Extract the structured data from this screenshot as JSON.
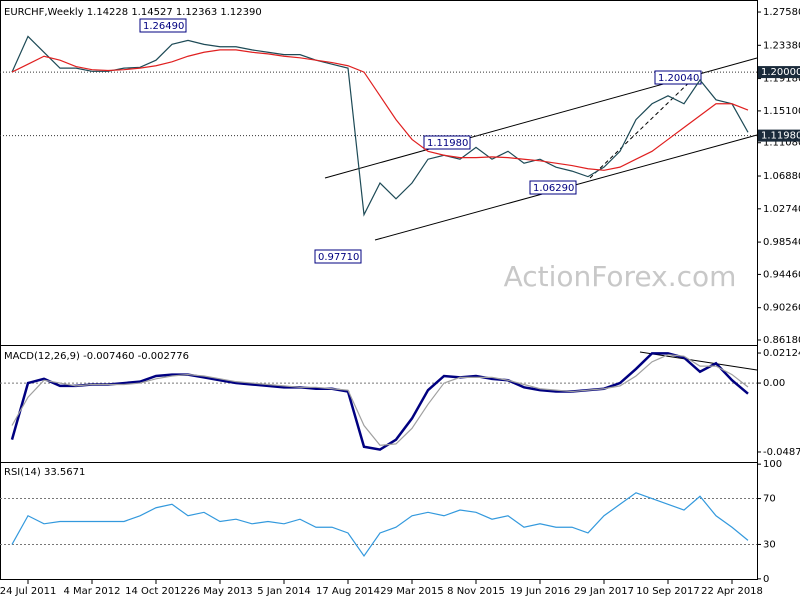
{
  "chart_data": [
    {
      "type": "line",
      "title": "EURCHF,Weekly  1.14228 1.14527 1.12363 1.12390",
      "watermark": "ActionForex.com",
      "series": [
        {
          "color": "#1d4a56",
          "values": [
            1.2,
            1.245,
            1.225,
            1.205,
            1.205,
            1.201,
            1.201,
            1.205,
            1.206,
            1.215,
            1.235,
            1.24,
            1.235,
            1.232,
            1.232,
            1.228,
            1.225,
            1.222,
            1.222,
            1.215,
            1.21,
            1.205,
            1.02,
            1.06,
            1.04,
            1.06,
            1.09,
            1.095,
            1.09,
            1.105,
            1.09,
            1.1,
            1.085,
            1.09,
            1.08,
            1.075,
            1.068,
            1.08,
            1.1,
            1.14,
            1.16,
            1.17,
            1.16,
            1.19,
            1.165,
            1.16,
            1.124
          ]
        },
        {
          "color": "#e02020",
          "values": [
            1.2,
            1.21,
            1.22,
            1.215,
            1.207,
            1.203,
            1.202,
            1.203,
            1.205,
            1.208,
            1.213,
            1.22,
            1.225,
            1.228,
            1.228,
            1.225,
            1.223,
            1.22,
            1.218,
            1.215,
            1.212,
            1.208,
            1.2,
            1.17,
            1.14,
            1.115,
            1.1,
            1.095,
            1.092,
            1.092,
            1.093,
            1.092,
            1.09,
            1.088,
            1.085,
            1.082,
            1.078,
            1.076,
            1.08,
            1.09,
            1.1,
            1.115,
            1.13,
            1.145,
            1.16,
            1.16,
            1.152
          ]
        }
      ],
      "ylim": [
        0.8555,
        1.2872
      ],
      "yticks": [
        {
          "value": 1.2758,
          "label": "1.27580"
        },
        {
          "value": 1.2338,
          "label": "1.23380"
        },
        {
          "value": 1.1918,
          "label": "1.19180"
        },
        {
          "value": 1.151,
          "label": "1.15100"
        },
        {
          "value": 1.1108,
          "label": "1.11080"
        },
        {
          "value": 1.0688,
          "label": "1.06880"
        },
        {
          "value": 1.0274,
          "label": "1.02740"
        },
        {
          "value": 0.9854,
          "label": "0.98540"
        },
        {
          "value": 0.9446,
          "label": "0.94460"
        },
        {
          "value": 0.9026,
          "label": "0.90260"
        },
        {
          "value": 0.8618,
          "label": "0.86180"
        }
      ],
      "levels": [
        {
          "value": 1.2,
          "label": "1.20000"
        },
        {
          "value": 1.1198,
          "label": "1.11980"
        }
      ],
      "annotations": [
        "1.26490",
        "1.20040",
        "1.11980",
        "1.06290",
        "0.97710"
      ]
    },
    {
      "type": "line",
      "title": "MACD(12,26,9) -0.007460 -0.002776",
      "series": [
        {
          "color": "#000080",
          "values": [
            -0.04,
            0.0,
            0.003,
            -0.002,
            -0.002,
            -0.001,
            -0.001,
            0.0,
            0.001,
            0.005,
            0.006,
            0.006,
            0.004,
            0.002,
            0.0,
            -0.001,
            -0.002,
            -0.003,
            -0.003,
            -0.004,
            -0.004,
            -0.006,
            -0.045,
            -0.047,
            -0.04,
            -0.025,
            -0.005,
            0.005,
            0.004,
            0.005,
            0.003,
            0.002,
            -0.003,
            -0.005,
            -0.006,
            -0.006,
            -0.005,
            -0.004,
            0.0,
            0.01,
            0.021,
            0.021,
            0.018,
            0.008,
            0.014,
            0.002,
            -0.0075
          ]
        },
        {
          "color": "#a0a0a0",
          "values": [
            -0.03,
            -0.01,
            0.002,
            0.0,
            -0.002,
            -0.001,
            -0.001,
            -0.001,
            0.0,
            0.003,
            0.005,
            0.006,
            0.005,
            0.003,
            0.001,
            0.0,
            -0.001,
            -0.002,
            -0.003,
            -0.003,
            -0.004,
            -0.005,
            -0.03,
            -0.044,
            -0.043,
            -0.032,
            -0.015,
            0.0,
            0.004,
            0.004,
            0.004,
            0.002,
            -0.001,
            -0.004,
            -0.005,
            -0.006,
            -0.005,
            -0.004,
            -0.002,
            0.005,
            0.015,
            0.02,
            0.019,
            0.012,
            0.012,
            0.006,
            -0.0028
          ]
        }
      ],
      "ylim": [
        -0.0558,
        0.0255
      ],
      "yticks": [
        {
          "value": 0.021242,
          "label": "0.021242"
        },
        {
          "value": 0,
          "label": "0.00"
        },
        {
          "value": -0.048716,
          "label": "-0.048716"
        }
      ]
    },
    {
      "type": "line",
      "title": "RSI(14) 33.5671",
      "categories": [
        null,
        "24 Jul 2011",
        null,
        null,
        null,
        "4 Mar 2012",
        null,
        null,
        null,
        "14 Oct 2012",
        null,
        null,
        null,
        "26 May 2013",
        null,
        null,
        null,
        "5 Jan 2014",
        null,
        null,
        null,
        "17 Aug 2014",
        null,
        null,
        null,
        "29 Mar 2015",
        null,
        null,
        null,
        "8 Nov 2015",
        null,
        null,
        null,
        "19 Jun 2016",
        null,
        null,
        null,
        "29 Jan 2017",
        null,
        null,
        null,
        "10 Sep 2017",
        null,
        null,
        null,
        "22 Apr 2018",
        null
      ],
      "series": [
        {
          "color": "#3399dd",
          "values": [
            30,
            55,
            48,
            50,
            50,
            50,
            50,
            50,
            55,
            62,
            65,
            55,
            58,
            50,
            52,
            48,
            50,
            48,
            52,
            45,
            45,
            40,
            20,
            40,
            45,
            55,
            58,
            55,
            60,
            58,
            52,
            55,
            45,
            48,
            45,
            45,
            40,
            55,
            65,
            75,
            70,
            65,
            60,
            72,
            55,
            45,
            33.5671
          ]
        }
      ],
      "ylim": [
        -1,
        101
      ],
      "yticks": [
        100,
        70,
        30,
        0
      ]
    }
  ]
}
